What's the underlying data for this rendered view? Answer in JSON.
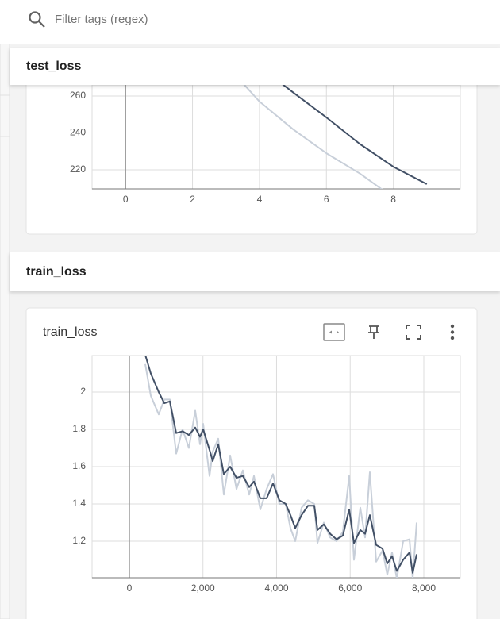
{
  "search": {
    "placeholder": "Filter tags (regex)"
  },
  "sections": [
    {
      "title": "test_loss"
    },
    {
      "title": "train_loss"
    }
  ],
  "chart_data": [
    {
      "type": "line",
      "grid": true,
      "xlim": [
        -1,
        10
      ],
      "xticks": [
        0,
        2,
        4,
        6,
        8
      ],
      "ylim": [
        209.7,
        266
      ],
      "yticks": [
        220,
        240,
        260
      ],
      "series": [
        {
          "color": "#c8cfd9",
          "x": [
            3,
            4,
            5,
            6,
            7,
            8
          ],
          "values": [
            277,
            257,
            242,
            229,
            218,
            205
          ]
        },
        {
          "color": "#425066",
          "x": [
            4,
            5,
            6,
            7,
            8,
            9
          ],
          "values": [
            276,
            262,
            248.4,
            234,
            221.7,
            212.3
          ]
        }
      ]
    },
    {
      "type": "line",
      "title": "train_loss",
      "grid": true,
      "xlim": [
        -1013,
        8992
      ],
      "xticks": [
        0,
        {
          "value": 2000,
          "label": "2,000"
        },
        {
          "value": 4000,
          "label": "4,000"
        },
        {
          "value": 6000,
          "label": "6,000"
        },
        {
          "value": 8000,
          "label": "8,000"
        }
      ],
      "ylim": [
        1.004,
        2.196
      ],
      "yticks": [
        1.2,
        1.4,
        1.6,
        1.8,
        2
      ],
      "series": [
        {
          "color": "#c8cfd9",
          "x": [
            431,
            582,
            798,
            949,
            1100,
            1272,
            1445,
            1617,
            1790,
            1919,
            2005,
            2178,
            2264,
            2415,
            2566,
            2739,
            2911,
            3084,
            3256,
            3386,
            3558,
            3731,
            3903,
            4076,
            4248,
            4378,
            4507,
            4680,
            4852,
            5024,
            5111,
            5283,
            5456,
            5628,
            5801,
            5973,
            6102,
            6275,
            6404,
            6534,
            6706,
            6879,
            7008,
            7138,
            7267,
            7440,
            7612,
            7698,
            7806
          ],
          "values": [
            2.15,
            1.98,
            1.88,
            1.96,
            1.96,
            1.67,
            1.8,
            1.7,
            1.9,
            1.72,
            1.83,
            1.55,
            1.68,
            1.75,
            1.45,
            1.66,
            1.48,
            1.58,
            1.45,
            1.55,
            1.37,
            1.48,
            1.56,
            1.4,
            1.4,
            1.27,
            1.2,
            1.38,
            1.42,
            1.4,
            1.19,
            1.3,
            1.22,
            1.2,
            1.25,
            1.55,
            1.1,
            1.38,
            1.22,
            1.57,
            1.09,
            1.15,
            1.02,
            1.14,
            1.0,
            1.2,
            1.21,
            1.0,
            1.3
          ]
        },
        {
          "color": "#425066",
          "x": [
            431,
            582,
            798,
            949,
            1100,
            1272,
            1445,
            1617,
            1790,
            1919,
            2005,
            2178,
            2264,
            2415,
            2566,
            2739,
            2911,
            3084,
            3256,
            3386,
            3558,
            3731,
            3903,
            4076,
            4248,
            4378,
            4507,
            4680,
            4852,
            5024,
            5111,
            5283,
            5456,
            5628,
            5801,
            5973,
            6102,
            6275,
            6404,
            6534,
            6706,
            6879,
            7008,
            7138,
            7267,
            7440,
            7612,
            7698,
            7806
          ],
          "values": [
            2.2,
            2.1,
            2.0,
            1.94,
            1.95,
            1.78,
            1.79,
            1.77,
            1.81,
            1.76,
            1.8,
            1.69,
            1.63,
            1.72,
            1.56,
            1.6,
            1.54,
            1.55,
            1.49,
            1.52,
            1.43,
            1.43,
            1.51,
            1.42,
            1.4,
            1.34,
            1.27,
            1.34,
            1.39,
            1.39,
            1.26,
            1.29,
            1.24,
            1.21,
            1.23,
            1.37,
            1.19,
            1.26,
            1.24,
            1.34,
            1.18,
            1.16,
            1.08,
            1.12,
            1.04,
            1.1,
            1.14,
            1.03,
            1.13
          ]
        }
      ]
    }
  ]
}
